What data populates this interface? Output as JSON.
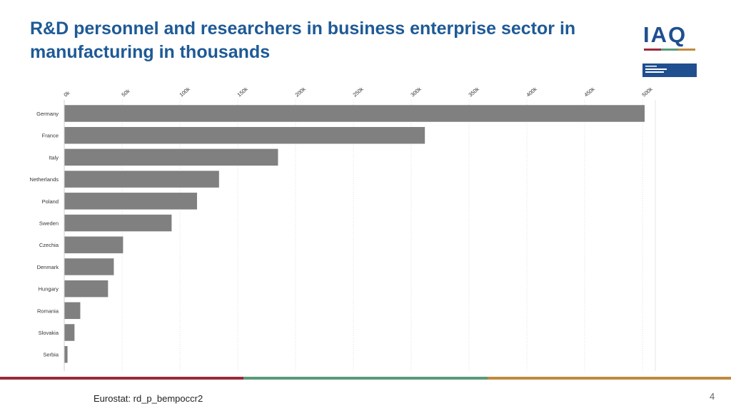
{
  "slide": {
    "title": "R&D personnel and researchers in business enterprise sector in manufacturing in thousands",
    "logo_text": "IAQ",
    "source": "Eurostat: rd_p_bempoccr2",
    "page_number": "4"
  },
  "colors": {
    "title": "#1e5a96",
    "bar": "#808080",
    "bar_stroke": "#ffffff",
    "stripe_red": "#9b2a3c",
    "stripe_green": "#5a9a78",
    "stripe_gold": "#c08a3e",
    "logo_blue": "#1f4f8f"
  },
  "chart_data": {
    "type": "bar",
    "orientation": "horizontal",
    "categories": [
      "Germany",
      "France",
      "Italy",
      "Netherlands",
      "Poland",
      "Sweden",
      "Czechia",
      "Denmark",
      "Hungary",
      "Romania",
      "Slovakia",
      "Serbia"
    ],
    "values": [
      502,
      312,
      185,
      134,
      115,
      93,
      51,
      43,
      38,
      14,
      9,
      3
    ],
    "xlim": [
      0,
      500
    ],
    "tick_values": [
      0,
      50,
      100,
      150,
      200,
      250,
      300,
      350,
      400,
      450,
      500
    ],
    "tick_labels": [
      "0k",
      "50k",
      "100k",
      "150k",
      "200k",
      "250k",
      "300k",
      "350k",
      "400k",
      "450k",
      "500k"
    ],
    "tick_position": "top",
    "grid": true
  }
}
